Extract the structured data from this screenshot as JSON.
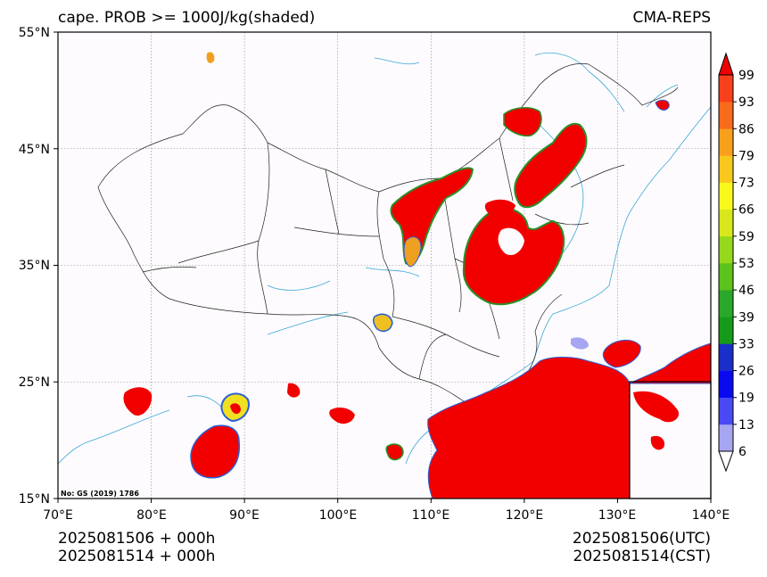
{
  "title_left": "cape. PROB >= 1000J/kg(shaded)",
  "title_right": "CMA-REPS",
  "footer_left": [
    "2025081506  +  000h",
    "2025081514  +  000h"
  ],
  "footer_right": [
    "2025081506(UTC)",
    "2025081514(CST)"
  ],
  "map_note": "No: GS (2019) 1786",
  "lat_ticks": [
    "55°N",
    "45°N",
    "35°N",
    "25°N",
    "15°N"
  ],
  "lon_ticks": [
    "70°E",
    "80°E",
    "90°E",
    "100°E",
    "110°E",
    "120°E",
    "130°E",
    "140°E"
  ],
  "colorbar": {
    "labels": [
      "6",
      "13",
      "19",
      "26",
      "33",
      "39",
      "46",
      "53",
      "59",
      "66",
      "73",
      "79",
      "86",
      "93",
      "99"
    ],
    "colors": [
      "#ffffff",
      "#a6a6f2",
      "#4a4af4",
      "#0a0af0",
      "#1a2fc8",
      "#169a1a",
      "#2aa82a",
      "#5cc21c",
      "#96d81c",
      "#d8e81c",
      "#f8f81c",
      "#f8c81c",
      "#f8a01c",
      "#f86a1c",
      "#f8401c",
      "#f00000"
    ]
  },
  "colors": {
    "coast": "#3aa8d8",
    "border": "#222222",
    "grid": "#888888",
    "prob_high": "#f00000"
  }
}
